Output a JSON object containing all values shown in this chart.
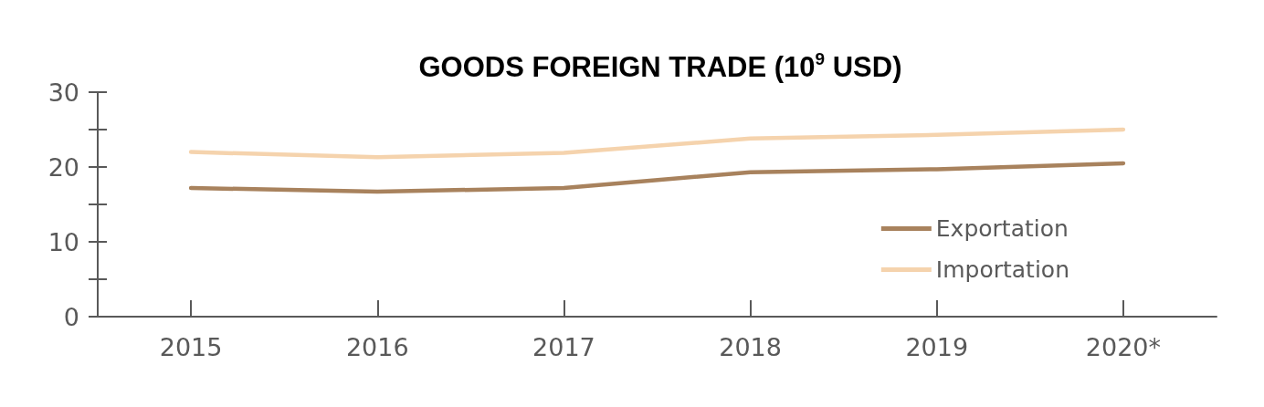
{
  "chart_data": {
    "type": "line",
    "title": "GOODS FOREIGN TRADE (10$^{9}$ USD)",
    "categories": [
      "2015",
      "2016",
      "2017",
      "2018",
      "2019",
      "2020*"
    ],
    "series": [
      {
        "name": "Exportation",
        "color": "#a8825d",
        "values": [
          17.2,
          16.7,
          17.2,
          19.3,
          19.7,
          20.5
        ]
      },
      {
        "name": "Importation",
        "color": "#f5d3ad",
        "values": [
          22.0,
          21.3,
          21.9,
          23.8,
          24.3,
          25.0
        ]
      }
    ],
    "ylim": [
      0,
      30
    ],
    "yticks": [
      0,
      {
        "value": 5,
        "label": null
      },
      10,
      {
        "value": 15,
        "label": null
      },
      20,
      {
        "value": 25,
        "label": null
      },
      30
    ],
    "grid": false,
    "legend": "right",
    "marker": "none",
    "line_style": "solid"
  }
}
